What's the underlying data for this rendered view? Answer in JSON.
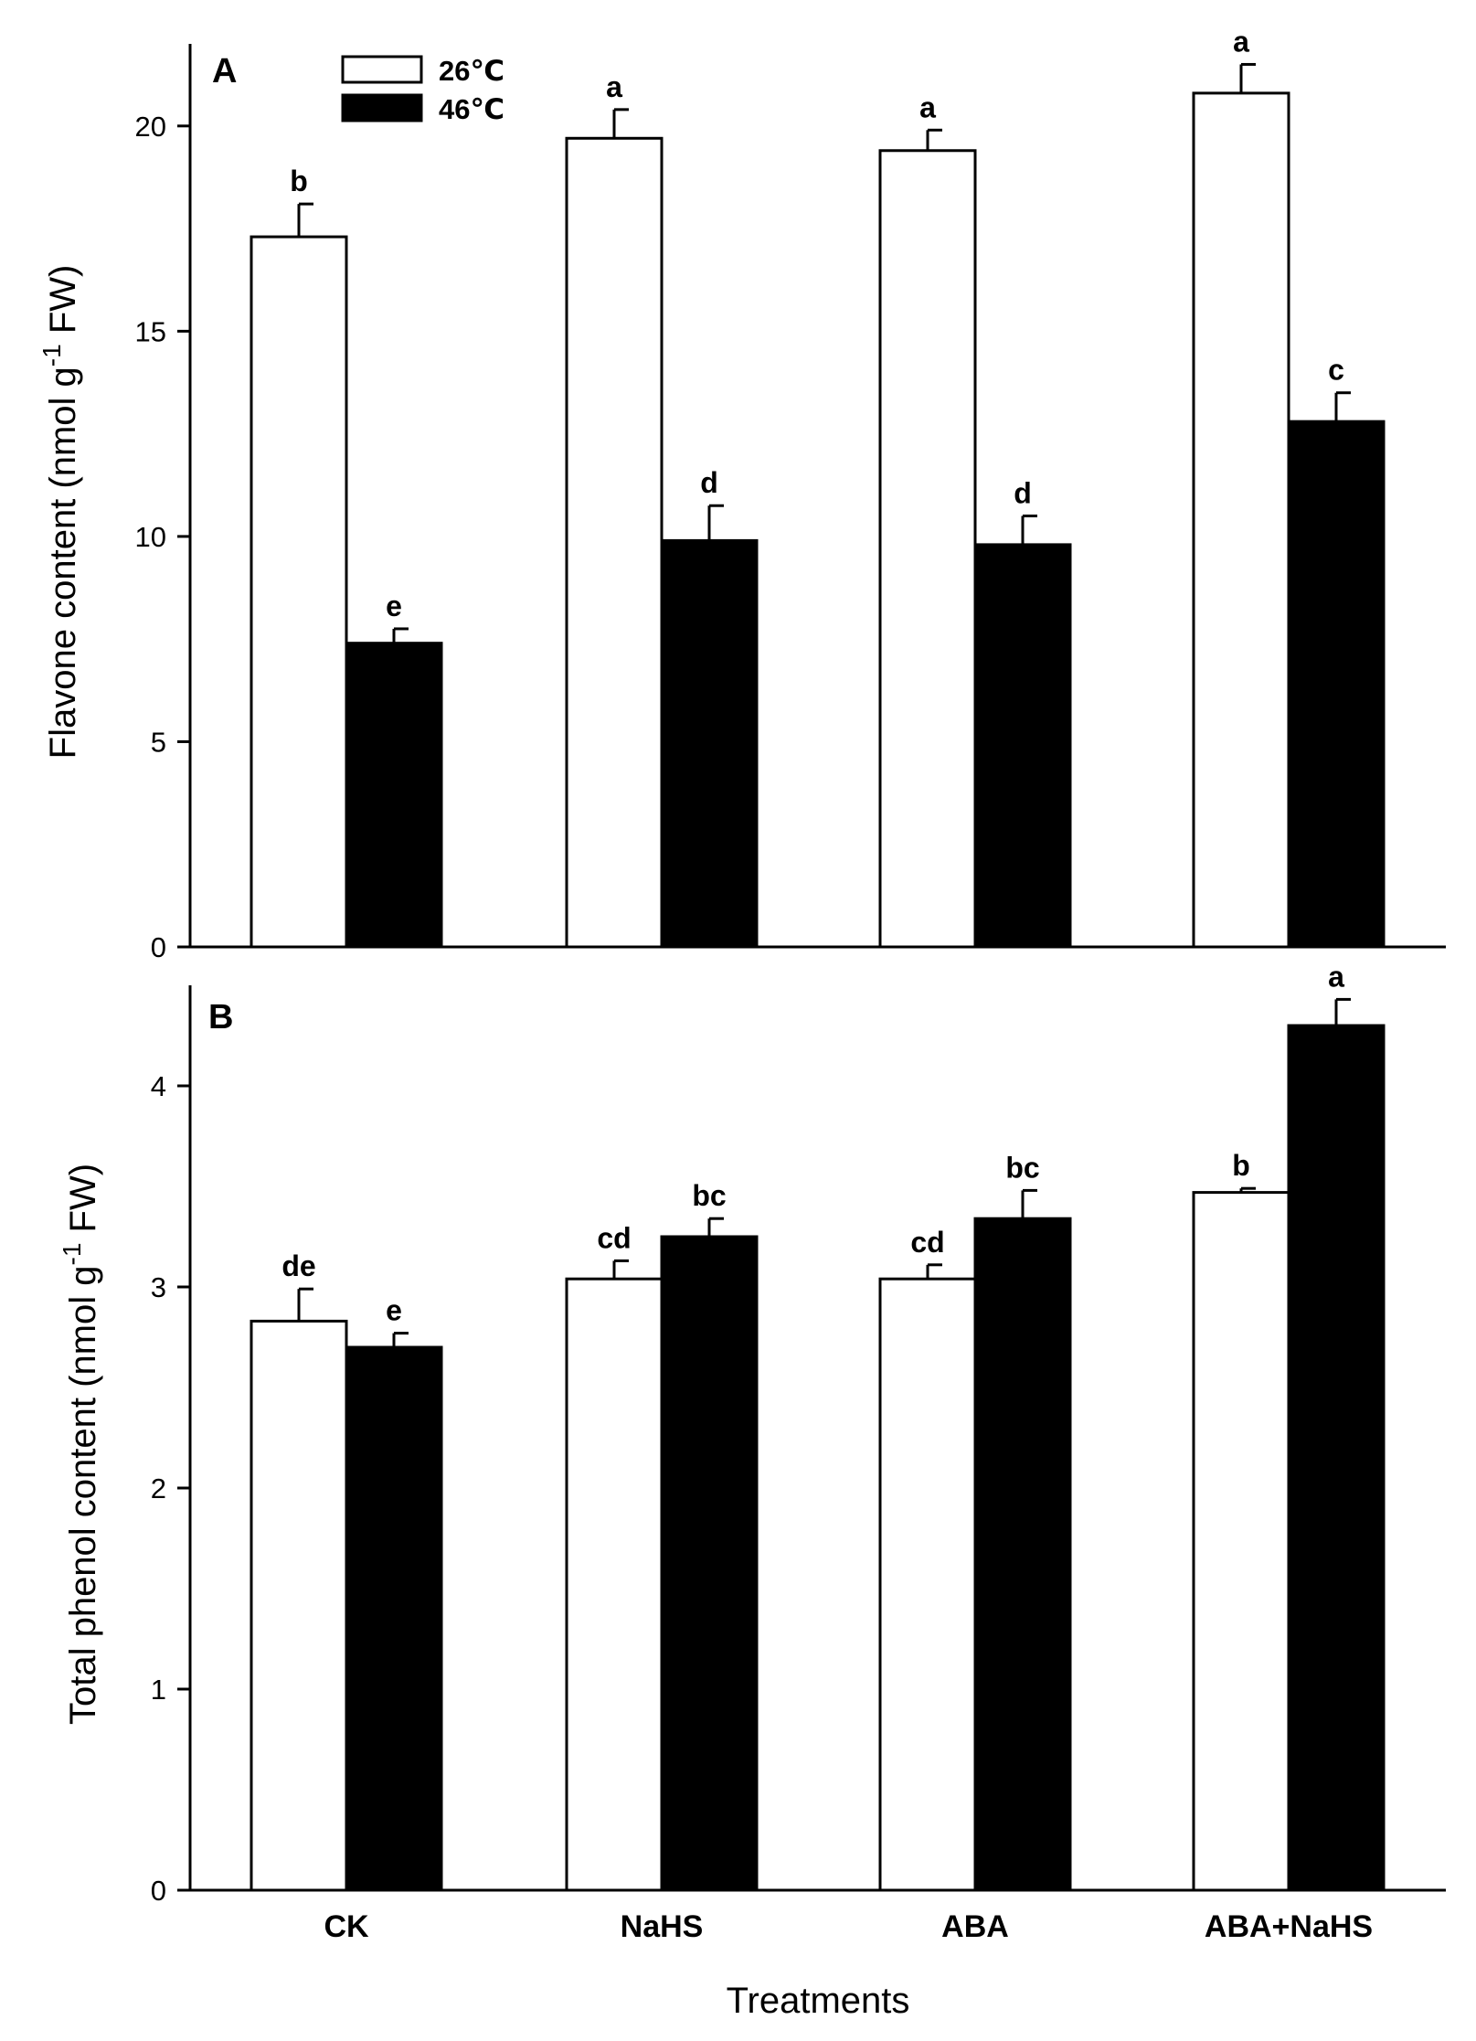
{
  "chart_data": [
    {
      "type": "bar",
      "panel_label": "A",
      "ylabel": {
        "main": "Flavone content (nmol g",
        "sup": "-1",
        "tail": " FW)"
      },
      "ylim": [
        0,
        22
      ],
      "yticks": [
        "0",
        "5",
        "10",
        "15",
        "20"
      ],
      "categories": [
        "CK",
        "NaHS",
        "ABA",
        "ABA+NaHS"
      ],
      "series": [
        {
          "name": "26℃",
          "color": "#ffffff",
          "values": [
            17.3,
            19.7,
            19.4,
            20.8
          ],
          "errors": [
            0.8,
            0.7,
            0.5,
            0.7
          ],
          "letters": [
            "b",
            "a",
            "a",
            "a"
          ]
        },
        {
          "name": "46℃",
          "color": "#000000",
          "values": [
            7.4,
            9.9,
            9.8,
            12.8
          ],
          "errors": [
            0.35,
            0.85,
            0.7,
            0.7
          ],
          "letters": [
            "e",
            "d",
            "d",
            "c"
          ]
        }
      ]
    },
    {
      "type": "bar",
      "panel_label": "B",
      "ylabel": {
        "main": "Total phenol content (nmol g",
        "sup": "-1",
        "tail": " FW)"
      },
      "ylim": [
        0,
        4.5
      ],
      "yticks": [
        "0",
        "1",
        "2",
        "3",
        "4"
      ],
      "categories": [
        "CK",
        "NaHS",
        "ABA",
        "ABA+NaHS"
      ],
      "series": [
        {
          "name": "26℃",
          "color": "#ffffff",
          "values": [
            2.83,
            3.04,
            3.04,
            3.47
          ],
          "errors": [
            0.16,
            0.09,
            0.07,
            0.02
          ],
          "letters": [
            "de",
            "cd",
            "cd",
            "b"
          ]
        },
        {
          "name": "46℃",
          "color": "#000000",
          "values": [
            2.7,
            3.25,
            3.34,
            4.3
          ],
          "errors": [
            0.07,
            0.09,
            0.14,
            0.13
          ],
          "letters": [
            "e",
            "bc",
            "bc",
            "a"
          ]
        }
      ]
    }
  ],
  "xlabel": "Treatments",
  "legend": [
    "26℃",
    "46℃"
  ]
}
